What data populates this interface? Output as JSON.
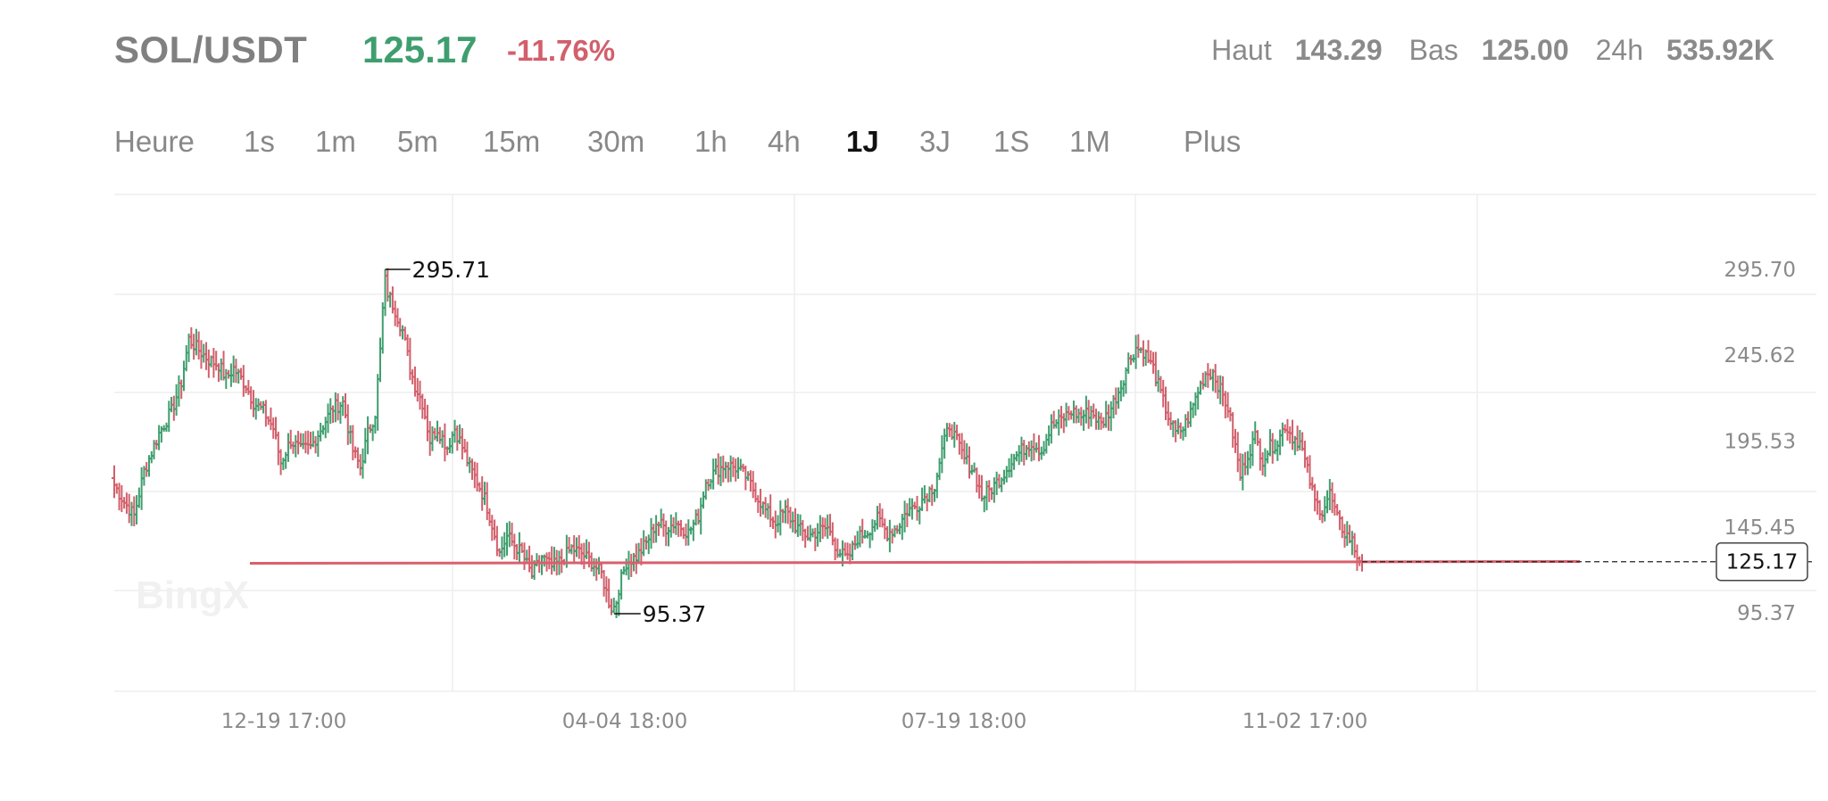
{
  "header": {
    "pair": "SOL/USDT",
    "price": "125.17",
    "change": "-11.76%",
    "stats": [
      {
        "label": "Haut",
        "value": "143.29"
      },
      {
        "label": "Bas",
        "value": "125.00"
      },
      {
        "label": "24h",
        "value": "535.92K"
      }
    ]
  },
  "colors": {
    "up": "#3f9e6e",
    "down": "#d25f6b",
    "grid": "#eeeeee",
    "line": "#d9606c"
  },
  "tabs": [
    {
      "label": "Heure",
      "active": false
    },
    {
      "label": "1s",
      "active": false
    },
    {
      "label": "1m",
      "active": false
    },
    {
      "label": "5m",
      "active": false
    },
    {
      "label": "15m",
      "active": false
    },
    {
      "label": "30m",
      "active": false
    },
    {
      "label": "1h",
      "active": false
    },
    {
      "label": "4h",
      "active": false
    },
    {
      "label": "1J",
      "active": true
    },
    {
      "label": "3J",
      "active": false
    },
    {
      "label": "1S",
      "active": false
    },
    {
      "label": "1M",
      "active": false
    },
    {
      "label": "Plus",
      "active": false
    }
  ],
  "watermark": "BingX",
  "chart_data": {
    "type": "ohlc",
    "y_ticks": [
      "295.70",
      "245.62",
      "195.53",
      "145.45",
      "95.37"
    ],
    "x_ticks": [
      "12-19 17:00",
      "04-04 18:00",
      "07-19 18:00",
      "11-02 17:00"
    ],
    "ylim": [
      95.37,
      295.7
    ],
    "high_label": "295.71",
    "low_label": "95.37",
    "current_price": "125.17",
    "horizontal_line": 124.5,
    "grid": true,
    "price_path": [
      [
        0,
        170
      ],
      [
        4,
        160
      ],
      [
        8,
        152
      ],
      [
        12,
        178
      ],
      [
        18,
        200
      ],
      [
        23,
        213
      ],
      [
        27,
        230
      ],
      [
        30,
        255
      ],
      [
        33,
        250
      ],
      [
        38,
        243
      ],
      [
        42,
        240
      ],
      [
        45,
        232
      ],
      [
        48,
        238
      ],
      [
        53,
        228
      ],
      [
        56,
        218
      ],
      [
        60,
        213
      ],
      [
        64,
        203
      ],
      [
        67,
        183
      ],
      [
        71,
        196
      ],
      [
        75,
        190
      ],
      [
        79,
        192
      ],
      [
        84,
        205
      ],
      [
        88,
        215
      ],
      [
        92,
        218
      ],
      [
        96,
        190
      ],
      [
        99,
        180
      ],
      [
        102,
        200
      ],
      [
        105,
        212
      ],
      [
        107,
        248
      ],
      [
        109,
        296
      ],
      [
        110,
        282
      ],
      [
        113,
        272
      ],
      [
        116,
        260
      ],
      [
        119,
        238
      ],
      [
        121,
        228
      ],
      [
        124,
        218
      ],
      [
        127,
        196
      ],
      [
        130,
        203
      ],
      [
        134,
        192
      ],
      [
        137,
        203
      ],
      [
        140,
        192
      ],
      [
        143,
        180
      ],
      [
        146,
        172
      ],
      [
        149,
        162
      ],
      [
        152,
        147
      ],
      [
        155,
        130
      ],
      [
        158,
        140
      ],
      [
        161,
        135
      ],
      [
        164,
        130
      ],
      [
        168,
        117
      ],
      [
        172,
        128
      ],
      [
        176,
        122
      ],
      [
        180,
        126
      ],
      [
        184,
        133
      ],
      [
        188,
        130
      ],
      [
        192,
        125
      ],
      [
        196,
        118
      ],
      [
        199,
        102
      ],
      [
        201,
        95
      ],
      [
        203,
        110
      ],
      [
        206,
        125
      ],
      [
        210,
        128
      ],
      [
        214,
        136
      ],
      [
        218,
        148
      ],
      [
        222,
        145
      ],
      [
        226,
        148
      ],
      [
        231,
        142
      ],
      [
        235,
        152
      ],
      [
        238,
        172
      ],
      [
        242,
        178
      ],
      [
        246,
        182
      ],
      [
        250,
        180
      ],
      [
        254,
        175
      ],
      [
        258,
        165
      ],
      [
        262,
        155
      ],
      [
        266,
        148
      ],
      [
        270,
        155
      ],
      [
        274,
        146
      ],
      [
        279,
        140
      ],
      [
        283,
        143
      ],
      [
        287,
        145
      ],
      [
        291,
        132
      ],
      [
        295,
        126
      ],
      [
        299,
        139
      ],
      [
        303,
        143
      ],
      [
        307,
        150
      ],
      [
        311,
        142
      ],
      [
        315,
        145
      ],
      [
        319,
        155
      ],
      [
        323,
        158
      ],
      [
        327,
        165
      ],
      [
        330,
        170
      ],
      [
        333,
        190
      ],
      [
        336,
        205
      ],
      [
        339,
        195
      ],
      [
        342,
        185
      ],
      [
        346,
        178
      ],
      [
        349,
        163
      ],
      [
        353,
        168
      ],
      [
        357,
        175
      ],
      [
        361,
        184
      ],
      [
        365,
        190
      ],
      [
        369,
        195
      ],
      [
        373,
        190
      ],
      [
        377,
        204
      ],
      [
        381,
        208
      ],
      [
        385,
        213
      ],
      [
        389,
        210
      ],
      [
        393,
        213
      ],
      [
        397,
        205
      ],
      [
        401,
        215
      ],
      [
        405,
        228
      ],
      [
        408,
        242
      ],
      [
        411,
        250
      ],
      [
        414,
        248
      ],
      [
        418,
        238
      ],
      [
        421,
        223
      ],
      [
        424,
        210
      ],
      [
        427,
        200
      ],
      [
        430,
        203
      ],
      [
        433,
        212
      ],
      [
        436,
        225
      ],
      [
        439,
        235
      ],
      [
        442,
        236
      ],
      [
        445,
        225
      ],
      [
        448,
        215
      ],
      [
        451,
        192
      ],
      [
        453,
        175
      ],
      [
        456,
        188
      ],
      [
        459,
        198
      ],
      [
        462,
        185
      ],
      [
        465,
        192
      ],
      [
        468,
        195
      ],
      [
        471,
        205
      ],
      [
        474,
        198
      ],
      [
        477,
        195
      ],
      [
        480,
        178
      ],
      [
        483,
        160
      ],
      [
        486,
        155
      ],
      [
        489,
        165
      ],
      [
        492,
        150
      ],
      [
        495,
        142
      ],
      [
        498,
        137
      ],
      [
        500,
        128
      ],
      [
        502,
        127
      ]
    ]
  }
}
